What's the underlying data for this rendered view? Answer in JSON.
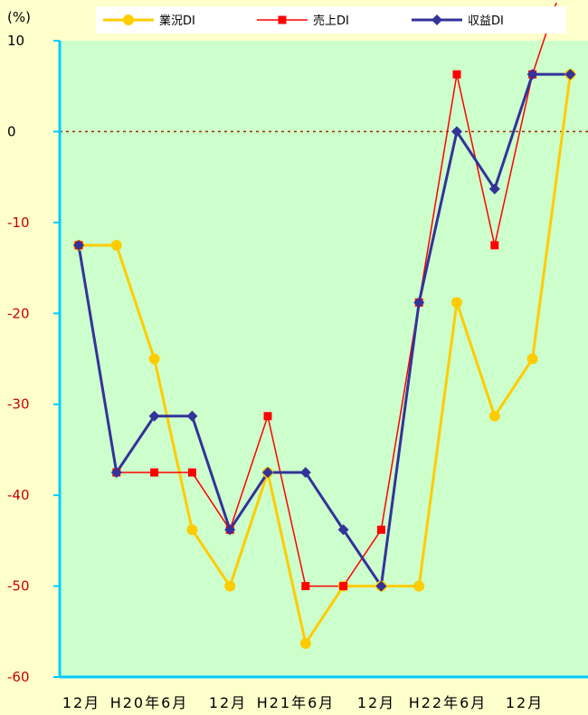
{
  "chart_data": {
    "type": "line",
    "ylabel": "(%)",
    "ylim": [
      -60,
      10
    ],
    "yticks": [
      10,
      0,
      -10,
      -20,
      -30,
      -40,
      -50,
      -60
    ],
    "ytick_labels": [
      "10",
      "0",
      "-10",
      "-20",
      "-30",
      "-40",
      "-50",
      "-60"
    ],
    "x_tick_labels": [
      "12月",
      "H20年6月",
      "12月",
      "H21年6月",
      "12月",
      "H22年6月",
      "12月"
    ],
    "zero_line": true,
    "grid": false,
    "legend_position": "top",
    "plot_background": "#ccffcc",
    "page_background": "#ffffcc",
    "axis_color": "#00ccff",
    "series": [
      {
        "name": "業況DI",
        "color": "#ffcc00",
        "marker": "circle",
        "values": [
          -12.5,
          -12.5,
          -25,
          -43.8,
          -50,
          -37.5,
          -56.3,
          -50,
          -50,
          -50,
          -18.8,
          -31.3,
          -25,
          6.3
        ]
      },
      {
        "name": "売上DI",
        "color": "#ff0000",
        "marker": "square",
        "values": [
          -12.5,
          -37.5,
          -37.5,
          -37.5,
          -43.8,
          -31.3,
          -50,
          -50,
          -43.8,
          -18.8,
          6.3,
          -12.5,
          6.3,
          18.8
        ]
      },
      {
        "name": "収益DI",
        "color": "#333399",
        "marker": "diamond",
        "values": [
          -12.5,
          -37.5,
          -31.3,
          -31.3,
          -43.8,
          -37.5,
          -37.5,
          -43.8,
          -50,
          -18.8,
          0,
          -6.3,
          6.3,
          6.3
        ]
      }
    ]
  }
}
